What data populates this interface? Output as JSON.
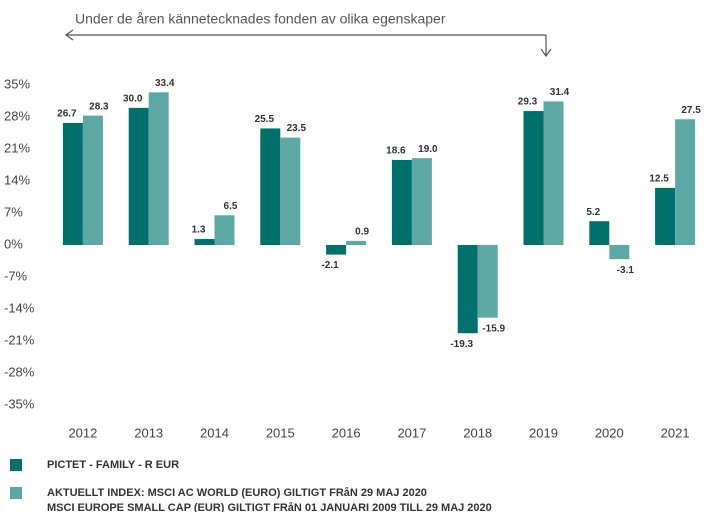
{
  "chart_data": {
    "type": "bar",
    "annotation": "Under de åren kännetecknades fonden av olika egenskaper",
    "categories": [
      "2012",
      "2013",
      "2014",
      "2015",
      "2016",
      "2017",
      "2018",
      "2019",
      "2020",
      "2021"
    ],
    "series": [
      {
        "name": "PICTET - FAMILY - R EUR",
        "color": "#00706a",
        "values": [
          26.7,
          30.0,
          1.3,
          25.5,
          -2.1,
          18.6,
          -19.3,
          29.3,
          5.2,
          12.5
        ],
        "value_labels": [
          "26.7",
          "30.0",
          "1.3",
          "25.5",
          "-2.1",
          "18.6",
          "-19.3",
          "29.3",
          "5.2",
          "12.5"
        ]
      },
      {
        "name": "AKTUELLT INDEX: MSCI AC WORLD (EURO) GILTIGT FRåN 29 MAJ 2020\nMSCI EUROPE SMALL CAP (EUR) GILTIGT FRåN 01 JANUARI 2009 TILL 29 MAJ 2020",
        "color": "#5ba8a5",
        "values": [
          28.3,
          33.4,
          6.5,
          23.5,
          0.9,
          19.0,
          -15.9,
          31.4,
          -3.1,
          27.5
        ],
        "value_labels": [
          "28.3",
          "33.4",
          "6.5",
          "23.5",
          "0.9",
          "19.0",
          "-15.9",
          "31.4",
          "-3.1",
          "27.5"
        ]
      }
    ],
    "ylim": [
      -35,
      35
    ],
    "yticks": [
      {
        "value": 35,
        "label": "35%"
      },
      {
        "value": 28,
        "label": "28%"
      },
      {
        "value": 21,
        "label": "21%"
      },
      {
        "value": 14,
        "label": "14%"
      },
      {
        "value": 7,
        "label": "7%"
      },
      {
        "value": 0,
        "label": "0%"
      },
      {
        "value": -7,
        "label": "-7%"
      },
      {
        "value": -14,
        "label": "-14%"
      },
      {
        "value": -21,
        "label": "-21%"
      },
      {
        "value": -28,
        "label": "-28%"
      },
      {
        "value": -35,
        "label": "-35%"
      }
    ],
    "grid": false
  }
}
